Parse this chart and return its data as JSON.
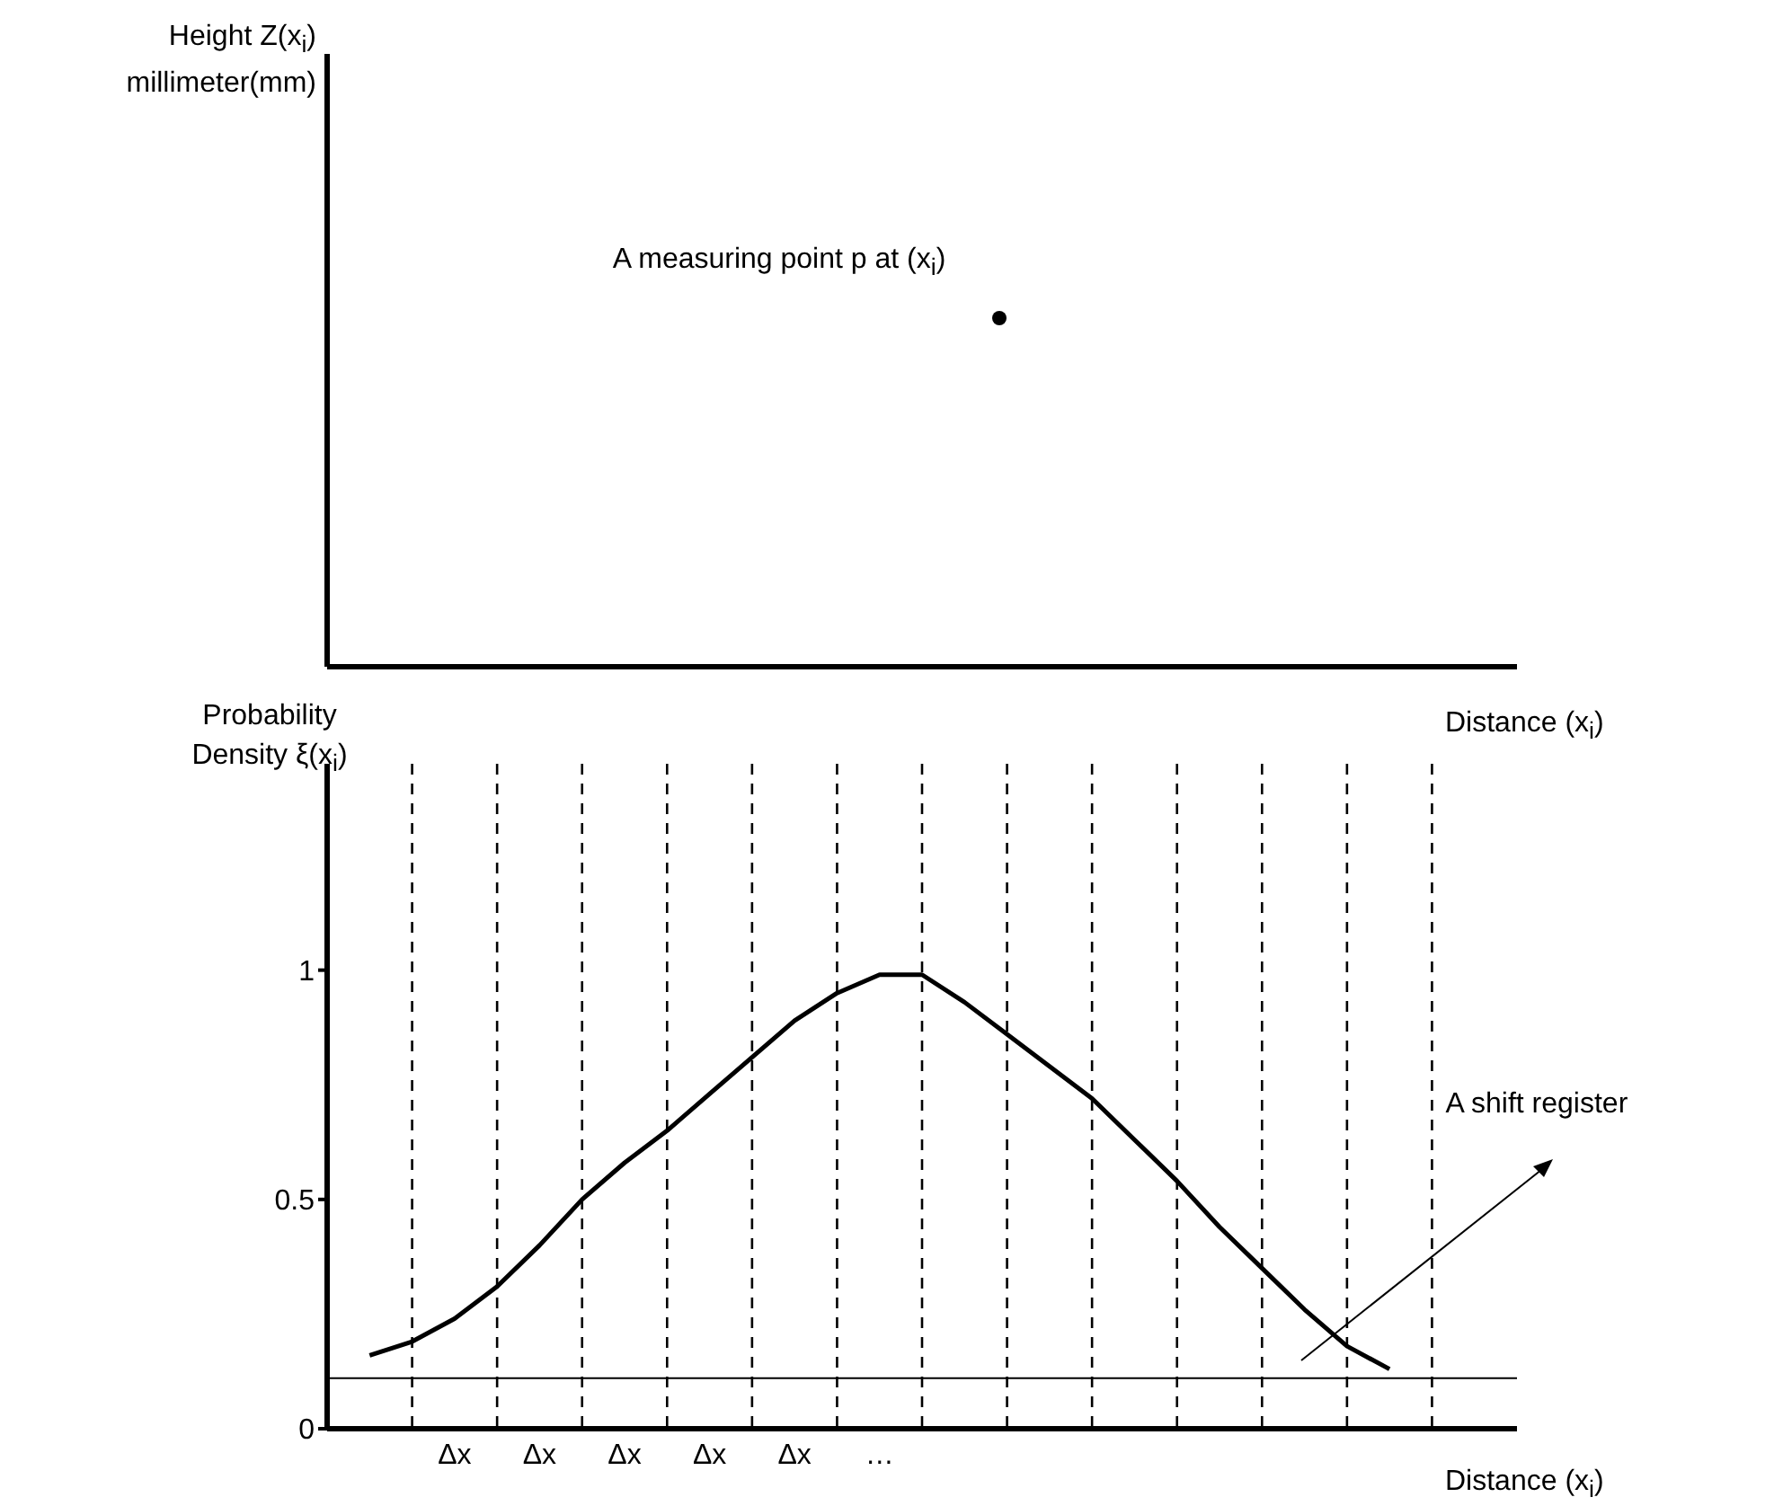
{
  "chart_data": [
    {
      "type": "other",
      "ylabel": "Height Z(x$_{i}$) millimeter(mm)",
      "xlabel": "Distance (x$_{i}$)",
      "annotations": [
        "A measuring point p at (x$_{i}$)"
      ]
    },
    {
      "type": "line",
      "ylabel": "Probability Density ξ(x$_{i}$)",
      "xlabel": "Distance (x$_{i}$)",
      "ylim": [
        0,
        1.45
      ],
      "yticks": [
        0,
        0.5,
        1
      ],
      "categories": [
        null,
        null,
        null,
        "Δx",
        null,
        "Δx",
        null,
        "Δx",
        null,
        "Δx",
        null,
        "Δx",
        null,
        "…",
        null,
        null,
        null,
        null,
        null,
        null,
        null,
        null,
        null,
        null,
        null,
        null,
        null,
        null,
        null
      ],
      "marker": "none",
      "line_style": "solid",
      "grid": "x",
      "annotations": [
        "A shift register"
      ],
      "ref_lines": [
        {
          "axis": "y",
          "value": 0.11,
          "color": "#000000",
          "line_style": "solid"
        }
      ],
      "series": [
        {
          "color": "#000000",
          "values": [
            null,
            0.16,
            0.19,
            0.24,
            0.31,
            0.4,
            0.5,
            0.58,
            0.65,
            0.73,
            0.81,
            0.89,
            0.95,
            0.99,
            0.99,
            0.93,
            0.86,
            0.79,
            0.72,
            0.63,
            0.54,
            0.44,
            0.35,
            0.26,
            0.18,
            0.13,
            null,
            null,
            null
          ]
        }
      ]
    }
  ]
}
